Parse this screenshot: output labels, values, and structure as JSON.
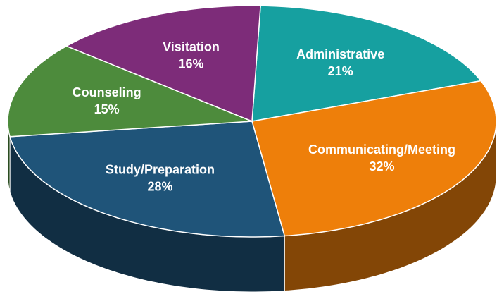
{
  "chart_data": {
    "type": "pie3d",
    "categories": [
      "Administrative",
      "Communicating/Meeting",
      "Study/Preparation",
      "Counseling",
      "Visitation"
    ],
    "values": [
      21,
      32,
      28,
      15,
      16
    ],
    "value_labels": [
      "21%",
      "32%",
      "28%",
      "15%",
      "16%"
    ],
    "colors": [
      "#16a0a0",
      "#ee7f0a",
      "#1f5479",
      "#4d8b3c",
      "#7d2c79"
    ]
  }
}
